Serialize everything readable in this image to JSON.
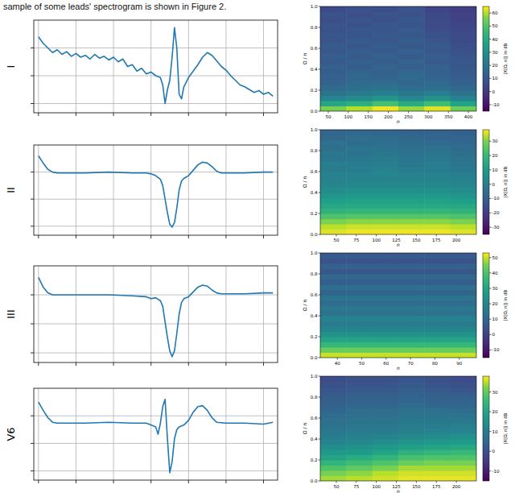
{
  "caption": "sample of some leads' spectrogram is shown in Figure 2.",
  "chart_data": [
    {
      "type": "line",
      "ylabel": "I",
      "xlim": [
        -2,
        102
      ],
      "ylim": [
        0,
        100
      ],
      "xticks": [
        0,
        16,
        32,
        48,
        64,
        80,
        96
      ],
      "yticks": [
        10,
        40,
        70
      ],
      "grid": true,
      "tick_labels": false,
      "series": [
        {
          "color": "#1f77b4",
          "x": [
            0,
            2,
            4,
            6,
            8,
            10,
            12,
            14,
            16,
            18,
            20,
            22,
            24,
            26,
            28,
            30,
            32,
            34,
            36,
            38,
            40,
            42,
            44,
            46,
            48,
            50,
            52,
            53,
            54,
            55,
            56,
            57,
            58,
            59,
            60,
            61,
            62,
            64,
            66,
            68,
            70,
            72,
            74,
            76,
            78,
            80,
            82,
            84,
            86,
            88,
            90,
            92,
            94,
            96,
            98,
            100
          ],
          "values": [
            82,
            75,
            70,
            65,
            68,
            63,
            66,
            61,
            64,
            60,
            62,
            58,
            63,
            59,
            61,
            57,
            60,
            55,
            58,
            50,
            52,
            45,
            48,
            42,
            44,
            40,
            38,
            30,
            10,
            25,
            35,
            60,
            92,
            70,
            20,
            15,
            28,
            38,
            45,
            52,
            60,
            65,
            62,
            56,
            50,
            46,
            40,
            35,
            30,
            28,
            25,
            22,
            24,
            20,
            22,
            18
          ]
        }
      ]
    },
    {
      "type": "heatmap",
      "xlabel": "n",
      "ylabel": "Ω / π",
      "xlim": [
        30,
        420
      ],
      "ylim": [
        0,
        1
      ],
      "xticks": [
        50,
        100,
        150,
        200,
        250,
        300,
        350,
        400
      ],
      "yticks": [
        {
          "value": 0,
          "label": "0.0"
        },
        {
          "value": 0.2,
          "label": "0.2"
        },
        {
          "value": 0.4,
          "label": "0.4"
        },
        {
          "value": 0.6,
          "label": "0.6"
        },
        {
          "value": 0.8,
          "label": "0.8"
        },
        {
          "value": 1,
          "label": "1.0"
        }
      ],
      "color": "viridis",
      "zlabel": "|X[Ω, n]| in dB",
      "zlim": [
        -15,
        65
      ],
      "zticks": [
        -10,
        0,
        10,
        20,
        30,
        40,
        50,
        60
      ],
      "z": [
        [
          56,
          60,
          64,
          58,
          63,
          55
        ],
        [
          38,
          42,
          48,
          40,
          47,
          37
        ],
        [
          26,
          28,
          32,
          27,
          31,
          25
        ],
        [
          20,
          22,
          24,
          21,
          23,
          19
        ],
        [
          16,
          18,
          19,
          17,
          18,
          15
        ],
        [
          14,
          16,
          17,
          15,
          16,
          13
        ],
        [
          13,
          15,
          14,
          16,
          14,
          12
        ],
        [
          12,
          14,
          13,
          15,
          13,
          11
        ],
        [
          13,
          12,
          14,
          12,
          13,
          10
        ],
        [
          11,
          13,
          12,
          14,
          11,
          10
        ],
        [
          12,
          11,
          13,
          11,
          12,
          9
        ],
        [
          10,
          12,
          11,
          13,
          10,
          8
        ],
        [
          11,
          10,
          12,
          10,
          11,
          7
        ],
        [
          9,
          11,
          10,
          12,
          9,
          6
        ],
        [
          10,
          9,
          11,
          10,
          8,
          6
        ],
        [
          8,
          10,
          9,
          11,
          7,
          5
        ],
        [
          9,
          8,
          10,
          9,
          6,
          4
        ],
        [
          7,
          9,
          8,
          10,
          6,
          3
        ],
        [
          8,
          7,
          9,
          8,
          5,
          3
        ],
        [
          6,
          8,
          7,
          9,
          4,
          2
        ]
      ]
    },
    {
      "type": "line",
      "ylabel": "II",
      "xlim": [
        -2,
        102
      ],
      "ylim": [
        0,
        100
      ],
      "xticks": [
        0,
        16,
        32,
        48,
        64,
        80,
        96
      ],
      "yticks": [
        10,
        40,
        70
      ],
      "grid": true,
      "tick_labels": false,
      "series": [
        {
          "color": "#1f77b4",
          "x": [
            0,
            2,
            4,
            6,
            8,
            12,
            20,
            30,
            40,
            46,
            48,
            50,
            52,
            53,
            54,
            55,
            56,
            57,
            58,
            59,
            60,
            61,
            62,
            64,
            66,
            68,
            70,
            72,
            74,
            76,
            78,
            80,
            88,
            96,
            100
          ],
          "values": [
            88,
            80,
            73,
            70,
            69,
            69,
            69,
            70,
            69,
            69,
            68,
            66,
            62,
            55,
            40,
            25,
            12,
            9,
            14,
            30,
            50,
            60,
            63,
            66,
            72,
            78,
            81,
            80,
            76,
            71,
            69,
            69,
            69,
            70,
            70
          ]
        }
      ]
    },
    {
      "type": "heatmap",
      "xlabel": "n",
      "ylabel": "Ω / π",
      "xlim": [
        30,
        225
      ],
      "ylim": [
        0,
        1
      ],
      "xticks": [
        50,
        75,
        100,
        125,
        150,
        175,
        200
      ],
      "yticks": [
        {
          "value": 0,
          "label": "0.0"
        },
        {
          "value": 0.2,
          "label": "0.2"
        },
        {
          "value": 0.4,
          "label": "0.4"
        },
        {
          "value": 0.6,
          "label": "0.6"
        },
        {
          "value": 0.8,
          "label": "0.8"
        },
        {
          "value": 1,
          "label": "1.0"
        }
      ],
      "color": "viridis",
      "zlabel": "|X[Ω, n]| in dB",
      "zlim": [
        -35,
        38
      ],
      "zticks": [
        -30,
        -20,
        -10,
        0,
        10,
        20,
        30
      ],
      "z": [
        [
          36,
          37,
          37,
          37,
          37,
          36
        ],
        [
          34,
          35,
          35,
          35,
          35,
          34
        ],
        [
          30,
          31,
          31,
          31,
          31,
          30
        ],
        [
          24,
          25,
          25,
          25,
          25,
          24
        ],
        [
          18,
          19,
          19,
          19,
          19,
          18
        ],
        [
          14,
          15,
          15,
          15,
          15,
          14
        ],
        [
          11,
          12,
          12,
          12,
          12,
          11
        ],
        [
          8,
          9,
          9,
          9,
          9,
          8
        ],
        [
          5,
          6,
          6,
          6,
          6,
          5
        ],
        [
          3,
          4,
          4,
          4,
          4,
          3
        ],
        [
          1,
          2,
          2,
          2,
          2,
          1
        ],
        [
          2,
          1,
          3,
          1,
          2,
          0
        ],
        [
          -1,
          0,
          1,
          0,
          -1,
          -2
        ],
        [
          0,
          -1,
          0,
          -2,
          0,
          -3
        ],
        [
          -3,
          -2,
          -1,
          -3,
          -2,
          -4
        ],
        [
          -2,
          -4,
          -2,
          -4,
          -3,
          -5
        ],
        [
          -5,
          -3,
          -4,
          -5,
          -4,
          -6
        ],
        [
          -4,
          -6,
          -5,
          -6,
          -6,
          -7
        ],
        [
          -7,
          -5,
          -6,
          -7,
          -8,
          -8
        ],
        [
          -8,
          -7,
          -8,
          -9,
          -9,
          -10
        ]
      ]
    },
    {
      "type": "line",
      "ylabel": "III",
      "xlim": [
        -2,
        102
      ],
      "ylim": [
        0,
        100
      ],
      "xticks": [
        0,
        16,
        32,
        48,
        64,
        80,
        96
      ],
      "yticks": [
        10,
        40,
        70
      ],
      "grid": true,
      "tick_labels": false,
      "series": [
        {
          "color": "#1f77b4",
          "x": [
            0,
            2,
            4,
            6,
            8,
            12,
            20,
            30,
            40,
            46,
            48,
            50,
            52,
            53,
            54,
            55,
            56,
            57,
            58,
            59,
            60,
            61,
            62,
            64,
            66,
            68,
            70,
            72,
            74,
            76,
            78,
            80,
            88,
            96,
            100
          ],
          "values": [
            88,
            78,
            72,
            70,
            70,
            70,
            70,
            70,
            69,
            68,
            66,
            67,
            64,
            58,
            42,
            26,
            12,
            6,
            12,
            30,
            50,
            62,
            66,
            68,
            73,
            78,
            80,
            79,
            75,
            72,
            71,
            71,
            71,
            72,
            72
          ]
        }
      ]
    },
    {
      "type": "heatmap",
      "xlabel": "n",
      "ylabel": "Ω / π",
      "xlim": [
        33,
        97
      ],
      "ylim": [
        0,
        1
      ],
      "xticks": [
        40,
        50,
        60,
        70,
        80,
        90
      ],
      "yticks": [
        {
          "value": 0,
          "label": "0.0"
        },
        {
          "value": 0.2,
          "label": "0.2"
        },
        {
          "value": 0.4,
          "label": "0.4"
        },
        {
          "value": 0.6,
          "label": "0.6"
        },
        {
          "value": 0.8,
          "label": "0.8"
        },
        {
          "value": 1,
          "label": "1.0"
        }
      ],
      "color": "viridis",
      "zlabel": "|X[Ω, n]| in dB",
      "zlim": [
        -15,
        53
      ],
      "zticks": [
        -10,
        0,
        10,
        20,
        30,
        40,
        50
      ],
      "z": [
        [
          50,
          50,
          50,
          50,
          50,
          50
        ],
        [
          44,
          44,
          44,
          44,
          44,
          44
        ],
        [
          36,
          36,
          36,
          36,
          36,
          36
        ],
        [
          30,
          30,
          30,
          30,
          30,
          30
        ],
        [
          24,
          24,
          24,
          24,
          24,
          24
        ],
        [
          20,
          20,
          20,
          20,
          20,
          20
        ],
        [
          17,
          17,
          17,
          17,
          17,
          17
        ],
        [
          19,
          19,
          19,
          19,
          19,
          19
        ],
        [
          14,
          14,
          14,
          14,
          14,
          14
        ],
        [
          16,
          16,
          16,
          16,
          16,
          16
        ],
        [
          12,
          12,
          12,
          12,
          12,
          12
        ],
        [
          15,
          15,
          15,
          15,
          15,
          15
        ],
        [
          10,
          10,
          10,
          10,
          10,
          10
        ],
        [
          13,
          13,
          13,
          13,
          13,
          13
        ],
        [
          8,
          8,
          8,
          8,
          8,
          8
        ],
        [
          11,
          11,
          11,
          11,
          11,
          11
        ],
        [
          6,
          6,
          6,
          6,
          6,
          6
        ],
        [
          9,
          9,
          9,
          9,
          9,
          9
        ],
        [
          5,
          5,
          5,
          5,
          5,
          5
        ],
        [
          7,
          7,
          7,
          7,
          7,
          7
        ]
      ]
    },
    {
      "type": "line",
      "ylabel": "V6",
      "xlim": [
        -2,
        102
      ],
      "ylim": [
        0,
        100
      ],
      "xticks": [
        0,
        16,
        32,
        48,
        64,
        80,
        96
      ],
      "yticks": [
        10,
        40,
        70
      ],
      "grid": true,
      "tick_labels": false,
      "series": [
        {
          "color": "#1f77b4",
          "x": [
            0,
            2,
            4,
            6,
            8,
            12,
            20,
            30,
            40,
            46,
            48,
            50,
            51,
            52,
            53,
            54,
            55,
            56,
            57,
            58,
            59,
            60,
            62,
            64,
            66,
            68,
            70,
            72,
            74,
            76,
            80,
            88,
            96,
            100
          ],
          "values": [
            85,
            76,
            68,
            63,
            62,
            62,
            62,
            63,
            62,
            62,
            60,
            58,
            50,
            62,
            80,
            88,
            45,
            8,
            20,
            45,
            55,
            58,
            60,
            65,
            74,
            80,
            81,
            76,
            68,
            63,
            62,
            62,
            61,
            63
          ]
        }
      ]
    },
    {
      "type": "heatmap",
      "xlabel": "n",
      "ylabel": "Ω / π",
      "xlim": [
        30,
        225
      ],
      "ylim": [
        0,
        1
      ],
      "xticks": [
        50,
        75,
        100,
        125,
        150,
        175,
        200
      ],
      "yticks": [
        {
          "value": 0,
          "label": "0.0"
        },
        {
          "value": 0.2,
          "label": "0.2"
        },
        {
          "value": 0.4,
          "label": "0.4"
        },
        {
          "value": 0.6,
          "label": "0.6"
        },
        {
          "value": 0.8,
          "label": "0.8"
        },
        {
          "value": 1,
          "label": "1.0"
        }
      ],
      "color": "viridis",
      "zlabel": "|X[Ω, n]| in dB",
      "zlim": [
        -15,
        38
      ],
      "zticks": [
        -10,
        0,
        10,
        20,
        30
      ],
      "z": [
        [
          34,
          35,
          36,
          37,
          37,
          37
        ],
        [
          32,
          33,
          35,
          36,
          36,
          36
        ],
        [
          28,
          30,
          32,
          34,
          34,
          34
        ],
        [
          24,
          26,
          28,
          31,
          32,
          32
        ],
        [
          20,
          22,
          24,
          27,
          28,
          28
        ],
        [
          17,
          18,
          20,
          23,
          24,
          25
        ],
        [
          14,
          15,
          17,
          19,
          20,
          21
        ],
        [
          12,
          13,
          14,
          16,
          17,
          18
        ],
        [
          10,
          11,
          12,
          13,
          14,
          15
        ],
        [
          9,
          10,
          10,
          11,
          12,
          12
        ],
        [
          8,
          9,
          9,
          10,
          10,
          11
        ],
        [
          7,
          8,
          8,
          9,
          9,
          9
        ],
        [
          6,
          7,
          7,
          8,
          8,
          8
        ],
        [
          5,
          6,
          6,
          7,
          7,
          6
        ],
        [
          4,
          5,
          5,
          6,
          5,
          5
        ],
        [
          3,
          4,
          4,
          5,
          4,
          4
        ],
        [
          2,
          3,
          3,
          4,
          3,
          3
        ],
        [
          1,
          2,
          2,
          3,
          2,
          1
        ],
        [
          0,
          1,
          1,
          2,
          1,
          0
        ],
        [
          -1,
          0,
          0,
          1,
          0,
          -1
        ]
      ]
    }
  ]
}
